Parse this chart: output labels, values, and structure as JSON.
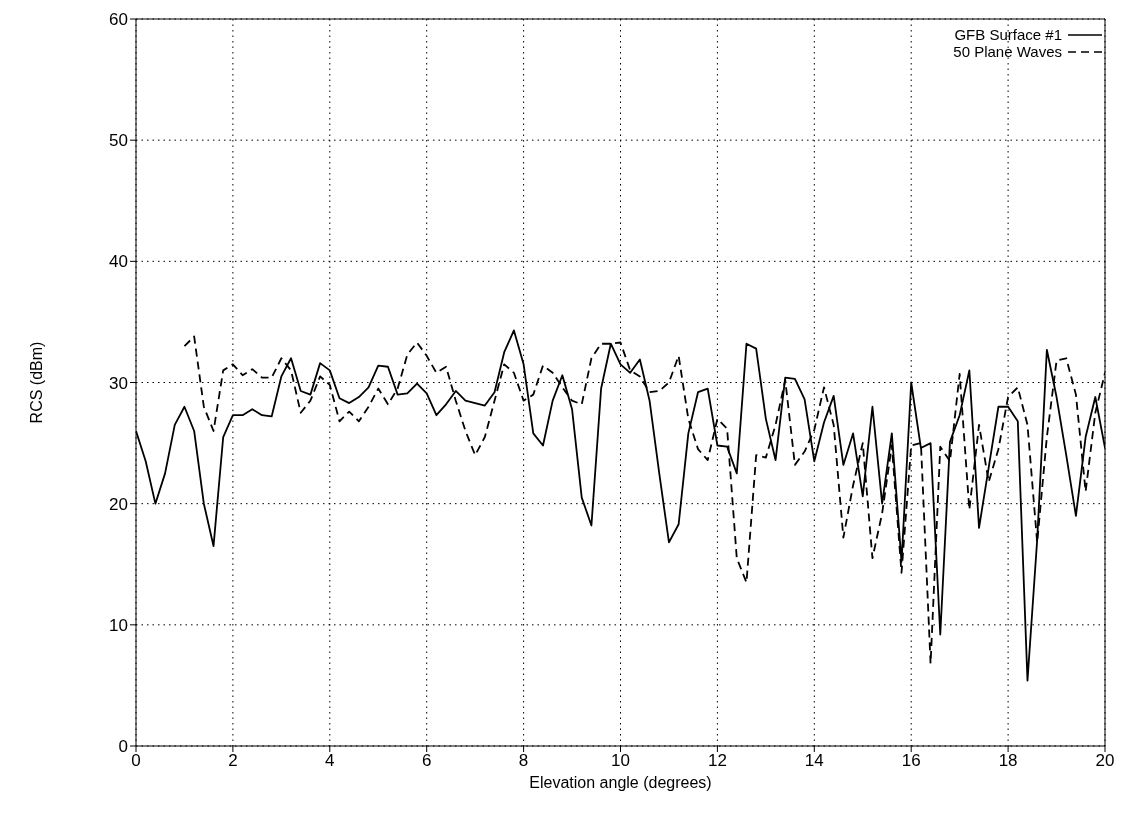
{
  "chart_data": {
    "type": "line",
    "xlabel": "Elevation angle (degrees)",
    "ylabel": "RCS (dBm)",
    "xlim": [
      0,
      20
    ],
    "xticks": [
      0,
      2,
      4,
      6,
      8,
      10,
      12,
      14,
      16,
      18,
      20
    ],
    "ylim": [
      0,
      60
    ],
    "yticks": [
      0,
      10,
      20,
      30,
      40,
      50,
      60
    ],
    "grid": true,
    "legend": "top right",
    "marker": "none",
    "series": [
      {
        "name": "GFB Surface #1",
        "color": "#000000",
        "line_style": "solid",
        "x": [
          0,
          0.2,
          0.4,
          0.6,
          0.8,
          1.0,
          1.2,
          1.4,
          1.6,
          1.8,
          2.0,
          2.2,
          2.4,
          2.6,
          2.8,
          3.0,
          3.2,
          3.4,
          3.6,
          3.8,
          4.0,
          4.2,
          4.4,
          4.6,
          4.8,
          5.0,
          5.2,
          5.4,
          5.6,
          5.8,
          6.0,
          6.2,
          6.4,
          6.6,
          6.8,
          7.0,
          7.2,
          7.4,
          7.6,
          7.8,
          8.0,
          8.2,
          8.4,
          8.6,
          8.8,
          9.0,
          9.2,
          9.4,
          9.6,
          9.8,
          10.0,
          10.2,
          10.4,
          10.6,
          10.8,
          11.0,
          11.2,
          11.4,
          11.6,
          11.8,
          12.0,
          12.2,
          12.4,
          12.6,
          12.8,
          13.0,
          13.2,
          13.4,
          13.6,
          13.8,
          14.0,
          14.2,
          14.4,
          14.6,
          14.8,
          15.0,
          15.2,
          15.4,
          15.6,
          15.8,
          16.0,
          16.2,
          16.4,
          16.6,
          16.8,
          17.0,
          17.2,
          17.4,
          17.6,
          17.8,
          18.0,
          18.2,
          18.4,
          18.6,
          18.8,
          19.0,
          19.2,
          19.4,
          19.6,
          19.8,
          20.0
        ],
        "values": [
          26,
          23.5,
          20,
          22.5,
          26.5,
          28,
          26,
          20,
          16.5,
          25.5,
          27.3,
          27.3,
          27.8,
          27.3,
          27.2,
          30.5,
          32,
          29.3,
          29,
          31.6,
          31,
          28.7,
          28.3,
          28.8,
          29.6,
          31.4,
          31.3,
          29,
          29.1,
          29.9,
          29.1,
          27.3,
          28.2,
          29.3,
          28.5,
          28.3,
          28.1,
          29.2,
          32.5,
          34.3,
          31.5,
          25.8,
          24.8,
          28.5,
          30.6,
          27.8,
          20.5,
          18.2,
          29.5,
          33.2,
          31.5,
          30.8,
          31.9,
          28.5,
          22.5,
          16.8,
          18.3,
          25.8,
          29.2,
          29.5,
          24.8,
          24.7,
          22.5,
          33.2,
          32.8,
          27,
          23.6,
          30.4,
          30.3,
          28.6,
          23.5,
          26.7,
          28.9,
          23.2,
          25.8,
          20.6,
          28,
          20,
          25.8,
          15.2,
          30,
          24.6,
          25,
          9.2,
          25.1,
          27.3,
          31,
          18,
          23,
          28,
          28,
          26.8,
          5.4,
          17,
          32.7,
          28.8,
          24,
          19,
          25.5,
          28.8,
          24.6
        ]
      },
      {
        "name": "50 Plane Waves",
        "color": "#000000",
        "line_style": "dashed",
        "x": [
          1.0,
          1.2,
          1.4,
          1.6,
          1.8,
          2.0,
          2.2,
          2.4,
          2.6,
          2.8,
          3.0,
          3.2,
          3.4,
          3.6,
          3.8,
          4.0,
          4.2,
          4.4,
          4.6,
          4.8,
          5.0,
          5.2,
          5.4,
          5.6,
          5.8,
          6.0,
          6.2,
          6.4,
          6.6,
          6.8,
          7.0,
          7.2,
          7.4,
          7.6,
          7.8,
          8.0,
          8.2,
          8.4,
          8.6,
          8.8,
          9.0,
          9.2,
          9.4,
          9.6,
          9.8,
          10.0,
          10.2,
          10.4,
          10.6,
          10.8,
          11.0,
          11.2,
          11.4,
          11.6,
          11.8,
          12.0,
          12.2,
          12.4,
          12.6,
          12.8,
          13.0,
          13.2,
          13.4,
          13.6,
          13.8,
          14.0,
          14.2,
          14.4,
          14.6,
          14.8,
          15.0,
          15.2,
          15.4,
          15.6,
          15.8,
          16.0,
          16.2,
          16.4,
          16.6,
          16.8,
          17.0,
          17.2,
          17.4,
          17.6,
          17.8,
          18.0,
          18.2,
          18.4,
          18.6,
          18.8,
          19.0,
          19.2,
          19.4,
          19.6,
          19.8,
          20.0
        ],
        "values": [
          33,
          33.8,
          28,
          26,
          31,
          31.5,
          30.6,
          31.1,
          30.4,
          30.4,
          32,
          31,
          27.5,
          28.5,
          30.5,
          29.8,
          26.8,
          27.6,
          26.8,
          28,
          29.5,
          28.2,
          29.5,
          32.3,
          33.3,
          32.2,
          30.8,
          31.3,
          28.5,
          26,
          24,
          25.5,
          28.5,
          31.5,
          30.8,
          28.5,
          29,
          31.4,
          30.8,
          29.6,
          28.5,
          28.2,
          32,
          33.2,
          33.2,
          33.3,
          31,
          30.5,
          29.2,
          29.3,
          30,
          32.2,
          27,
          24.5,
          23.6,
          27,
          26.2,
          15.5,
          13.5,
          24,
          23.8,
          26.5,
          30.2,
          23.2,
          24.3,
          26.1,
          29.6,
          26.5,
          17.2,
          21.5,
          25,
          15.5,
          19.2,
          24.8,
          14.3,
          24.8,
          25,
          6.8,
          24.7,
          23.5,
          30.7,
          19.5,
          26.5,
          21.8,
          24.5,
          28.8,
          29.6,
          26.5,
          16.8,
          25.5,
          31.8,
          32,
          29,
          21,
          27.5,
          30.8
        ]
      }
    ]
  }
}
